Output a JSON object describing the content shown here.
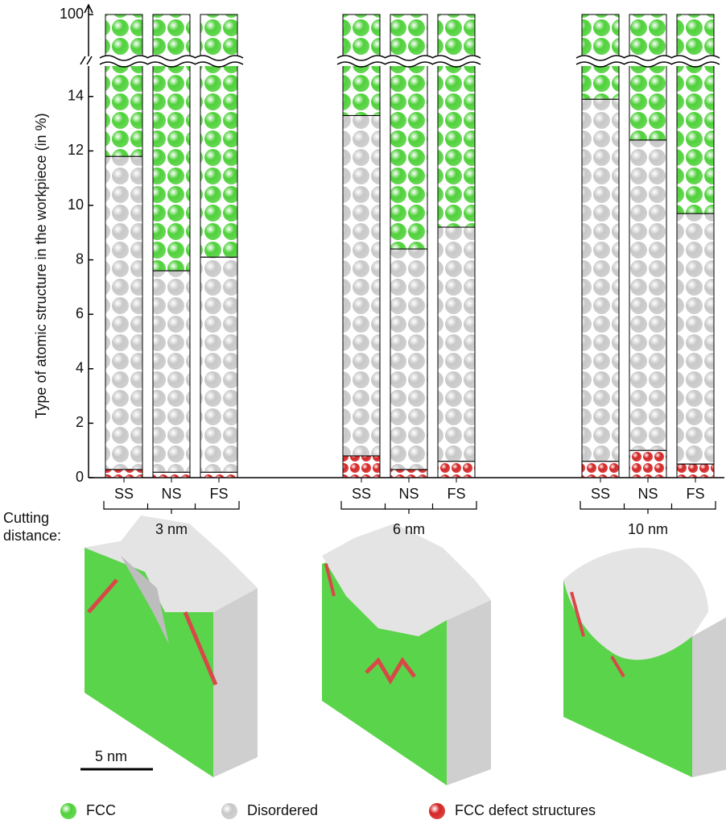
{
  "chart_data": {
    "type": "bar",
    "stacked": true,
    "y_label": "Type of atomic structure in the workpiece (in %)",
    "categories": [
      "SS",
      "NS",
      "FS",
      "SS",
      "NS",
      "FS",
      "SS",
      "NS",
      "FS"
    ],
    "group_labels": [
      "3 nm",
      "6 nm",
      "10 nm"
    ],
    "group_title": "Cutting distance:",
    "ylim": [
      0,
      100
    ],
    "axis_break": 15,
    "yticks": [
      0,
      2,
      4,
      6,
      8,
      10,
      12,
      14,
      100
    ],
    "series": [
      {
        "name": "FCC",
        "color": "#4fd13a",
        "values": [
          88.2,
          92.4,
          91.9,
          86.7,
          91.6,
          90.8,
          86.1,
          87.6,
          90.3
        ]
      },
      {
        "name": "Disordered",
        "color": "#c8c8c8",
        "values": [
          11.5,
          7.4,
          7.9,
          12.5,
          8.1,
          8.6,
          13.3,
          11.4,
          9.2
        ]
      },
      {
        "name": "FCC defect structures",
        "color": "#d42424",
        "values": [
          0.3,
          0.2,
          0.2,
          0.8,
          0.3,
          0.6,
          0.6,
          1.0,
          0.5
        ]
      }
    ]
  },
  "snapshots": {
    "scale_bar": "5 nm"
  }
}
